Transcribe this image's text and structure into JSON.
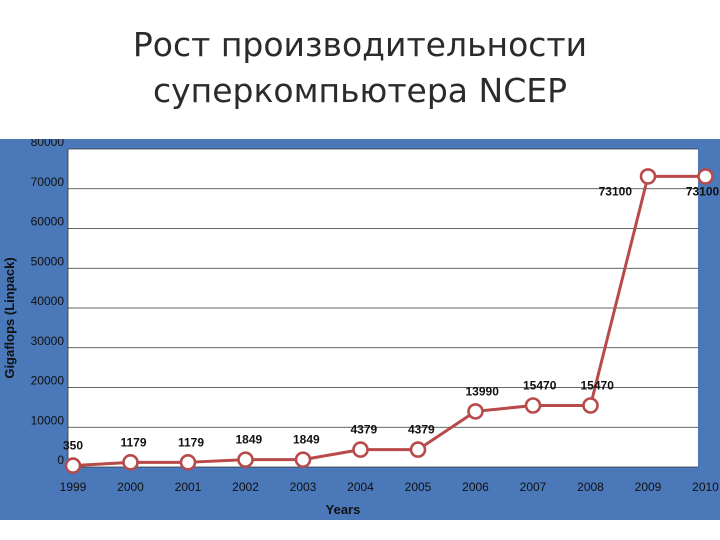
{
  "slide": {
    "title_line1": "Рост производительности",
    "title_line2": "суперкомпьютера NCEP"
  },
  "colors": {
    "frame_background": "#4a78b8",
    "plot_background": "#ffffff",
    "series_line": "#b84a4a",
    "marker_fill": "#ffffff",
    "gridline": "#333333"
  },
  "chart_data": {
    "type": "line",
    "title": "",
    "xlabel": "Years",
    "ylabel": "Gigaflops (Linpack)",
    "ylim": [
      0,
      80000
    ],
    "y_ticks": [
      "0",
      "10000",
      "20000",
      "30000",
      "40000",
      "50000",
      "60000",
      "70000",
      "80000"
    ],
    "x_ticks": [
      "1999",
      "2000",
      "2001",
      "2002",
      "2003",
      "2004",
      "2005",
      "2006",
      "2007",
      "2008",
      "2009",
      "2010"
    ],
    "grid": true,
    "legend": "none",
    "series": [
      {
        "x": [
          1999,
          2000,
          2001,
          2002,
          2003,
          2004,
          2005,
          2006,
          2007,
          2008,
          2009,
          2010
        ],
        "values": [
          350,
          1179,
          1179,
          1849,
          1849,
          4379,
          4379,
          13990,
          15470,
          15470,
          73100,
          73100
        ],
        "data_labels": [
          "350",
          "1179",
          "1179",
          "1849",
          "1849",
          "4379",
          "4379",
          "13990",
          "15470",
          "15470",
          "73100",
          "73100"
        ]
      }
    ]
  }
}
